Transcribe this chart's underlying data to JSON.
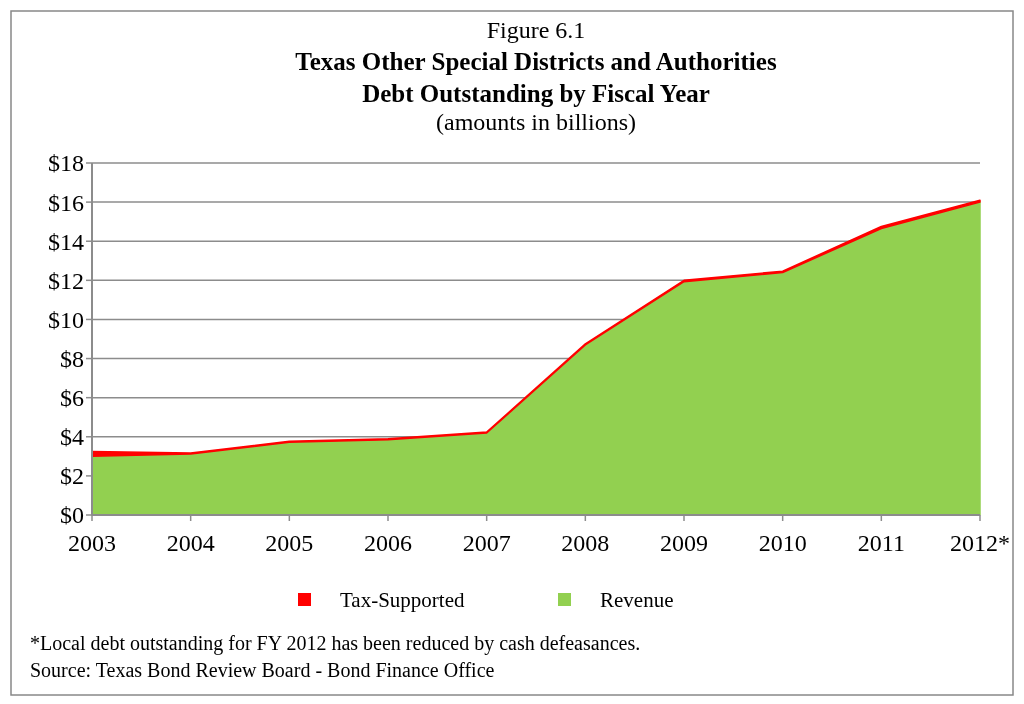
{
  "chart_data": {
    "type": "area",
    "stacked": true,
    "title": "Figure 6.1",
    "subtitle": "Texas Other Special Districts and Authorities\nDebt Outstanding by Fiscal Year",
    "ylabel": "(amounts in billions)",
    "categories": [
      "2003",
      "2004",
      "2005",
      "2006",
      "2007",
      "2008",
      "2009",
      "2010",
      "2011",
      "2012*"
    ],
    "series": [
      {
        "name": "Revenue",
        "color": "#92d050",
        "values": [
          3.0,
          3.12,
          3.72,
          3.85,
          4.19,
          8.7,
          11.93,
          12.4,
          14.65,
          16.0
        ]
      },
      {
        "name": "Tax-Supported",
        "color": "#ff0000",
        "values": [
          0.25,
          0.05,
          0.05,
          0.05,
          0.05,
          0.05,
          0.07,
          0.07,
          0.1,
          0.1
        ]
      }
    ],
    "ylim": [
      0,
      18
    ],
    "yticks": [
      {
        "value": 0,
        "label": "$0"
      },
      {
        "value": 2,
        "label": "$2"
      },
      {
        "value": 4,
        "label": "$4"
      },
      {
        "value": 6,
        "label": "$6"
      },
      {
        "value": 8,
        "label": "$8"
      },
      {
        "value": 10,
        "label": "$10"
      },
      {
        "value": 12,
        "label": "$12"
      },
      {
        "value": 14,
        "label": "$14"
      },
      {
        "value": 16,
        "label": "$16"
      },
      {
        "value": 18,
        "label": "$18"
      }
    ],
    "grid": "y",
    "legend": "bottom",
    "annotations": [
      "*Local debt outstanding for FY 2012 has been reduced by cash defeasances.",
      "Source: Texas Bond Review Board - Bond Finance Office"
    ]
  }
}
